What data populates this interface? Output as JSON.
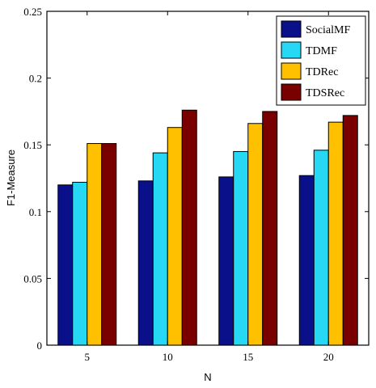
{
  "chart_data": {
    "type": "bar",
    "categories": [
      "5",
      "10",
      "15",
      "20"
    ],
    "series": [
      {
        "name": "SocialMF",
        "values": [
          0.12,
          0.123,
          0.126,
          0.127
        ],
        "color": "#0a0f8a"
      },
      {
        "name": "TDMF",
        "values": [
          0.122,
          0.144,
          0.145,
          0.146
        ],
        "color": "#27d8f5"
      },
      {
        "name": "TDRec",
        "values": [
          0.151,
          0.163,
          0.166,
          0.167
        ],
        "color": "#ffc000"
      },
      {
        "name": "TDSRec",
        "values": [
          0.151,
          0.176,
          0.175,
          0.172
        ],
        "color": "#7a0000"
      }
    ],
    "xlabel": "N",
    "ylabel": "F1-Measure",
    "ylim": [
      0,
      0.25
    ],
    "yticks": [
      "0",
      "0.05",
      "0.1",
      "0.15",
      "0.2",
      "0.25"
    ],
    "grid": false,
    "legend_position": "top-right"
  }
}
